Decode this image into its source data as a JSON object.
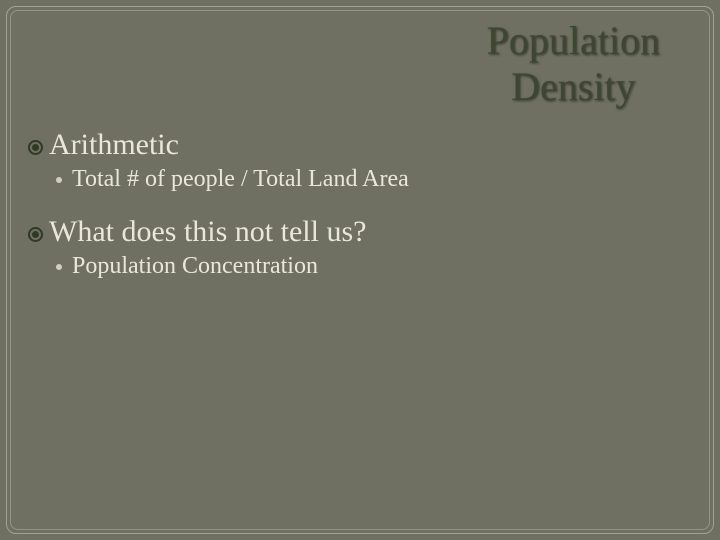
{
  "colors": {
    "background": "#6f7061",
    "title": "#3d4630",
    "text": "#e9e6da",
    "bullet1": "#2e3a24",
    "bullet2": "#d2cfc0"
  },
  "typography": {
    "title_fontsize": 40,
    "level1_fontsize": 30,
    "level2_fontsize": 24
  },
  "title": {
    "line1": "Population",
    "line2": "Density"
  },
  "content": [
    {
      "level1": "Arithmetic",
      "level2": "Total # of people / Total Land Area"
    },
    {
      "level1": "What does this not tell us?",
      "level2": "Population Concentration"
    }
  ]
}
